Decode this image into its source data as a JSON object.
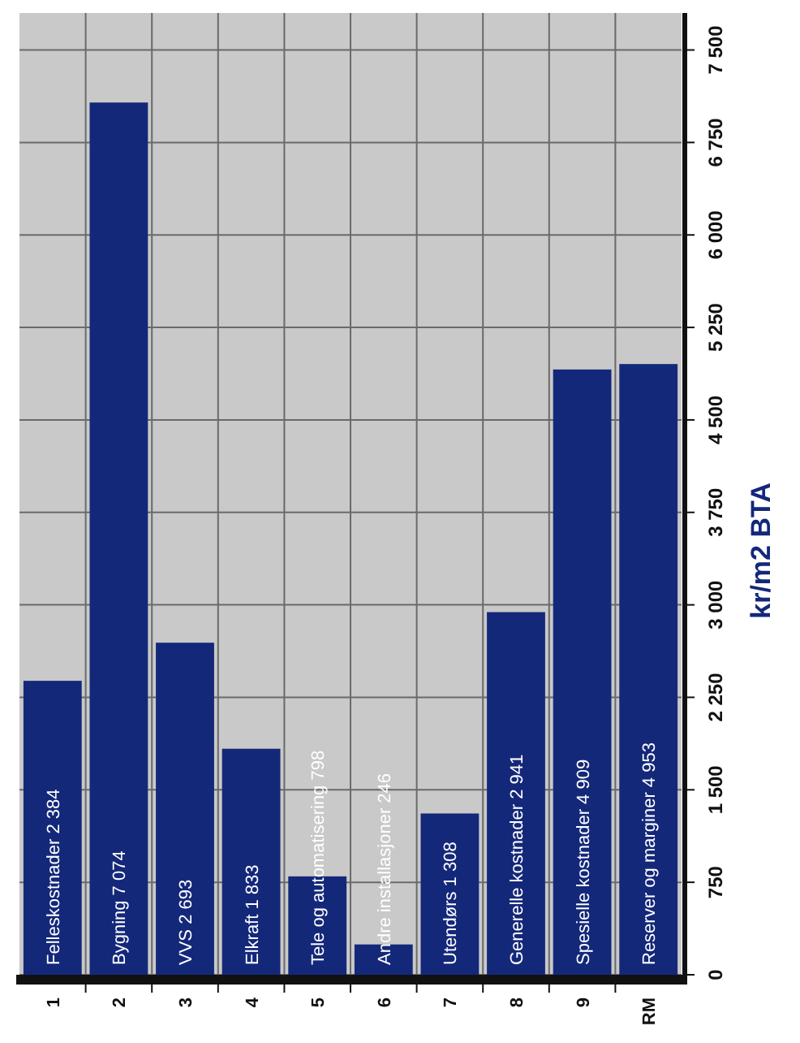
{
  "chart_data": {
    "type": "bar",
    "ylabel": "kr/m2 BTA",
    "categories": [
      "1",
      "2",
      "3",
      "4",
      "5",
      "6",
      "7",
      "8",
      "9",
      "RM"
    ],
    "values": [
      2384,
      7074,
      2693,
      1833,
      798,
      246,
      1308,
      2941,
      4909,
      4953
    ],
    "value_labels": [
      "Felleskostnader 2 384",
      "Bygning 7 074",
      "VVS 2 693",
      "Elkraft 1 833",
      "Tele og automatisering 798",
      "Andre installasjoner 246",
      "Utendørs 1 308",
      "Generelle kostnader 2 941",
      "Spesielle kostnader 4 909",
      "Reserver og marginer 4 953"
    ],
    "color": "#14287a",
    "ylim": [
      0,
      7800
    ],
    "yticks": [
      0,
      {
        "value": 750,
        "label": "750"
      },
      {
        "value": 1500,
        "label": "1 500"
      },
      {
        "value": 2250,
        "label": "2 250"
      },
      {
        "value": 3000,
        "label": "3 000"
      },
      {
        "value": 3750,
        "label": "3 750"
      },
      {
        "value": 4500,
        "label": "4 500"
      },
      {
        "value": 5250,
        "label": "5 250"
      },
      {
        "value": 6000,
        "label": "6 000"
      },
      {
        "value": 6750,
        "label": "6 750"
      },
      {
        "value": 7500,
        "label": "7 500"
      }
    ],
    "grid": true
  }
}
